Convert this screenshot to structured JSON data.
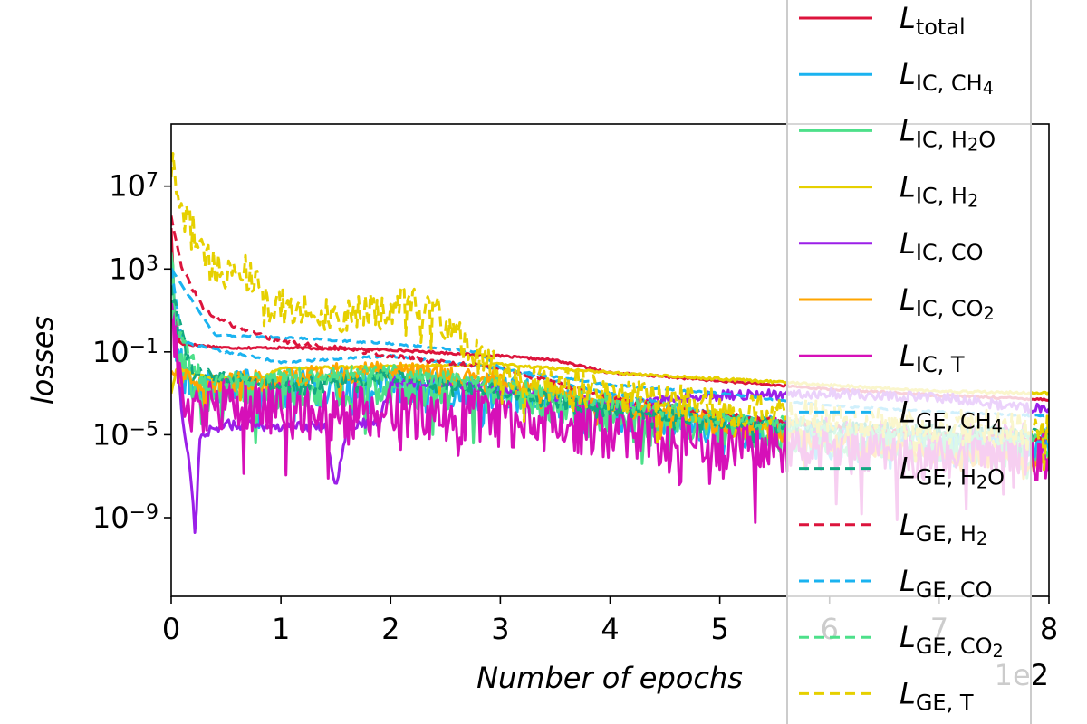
{
  "chart_data": {
    "type": "line",
    "xlabel": "Number of epochs",
    "ylabel": "losses",
    "x_multiplier": "1e2",
    "xlim": [
      0,
      8
    ],
    "ylim_log10": [
      -12.8,
      10
    ],
    "log_y": true,
    "x_ticks": [
      "0",
      "1",
      "2",
      "3",
      "4",
      "5",
      "6",
      "7",
      "8"
    ],
    "y_ticks": [
      {
        "base": "10",
        "exp": "7",
        "log10": 7
      },
      {
        "base": "10",
        "exp": "3",
        "log10": 3
      },
      {
        "base": "10",
        "exp": "−1",
        "log10": -1
      },
      {
        "base": "10",
        "exp": "−5",
        "log10": -5
      },
      {
        "base": "10",
        "exp": "−9",
        "log10": -9
      }
    ],
    "legend_position": "right, overlapping plot",
    "series": [
      {
        "name_main": "L",
        "name_sub": "total",
        "sub_html": "total",
        "color": "#dc143c",
        "dash": false,
        "noise": 0.05,
        "points": [
          [
            0,
            5
          ],
          [
            0.03,
            1
          ],
          [
            0.08,
            -0.6
          ],
          [
            0.5,
            -0.8
          ],
          [
            1.0,
            -0.8
          ],
          [
            2.0,
            -0.9
          ],
          [
            3.0,
            -1.2
          ],
          [
            3.5,
            -1.4
          ],
          [
            4.0,
            -2.0
          ],
          [
            5.0,
            -2.4
          ],
          [
            6.0,
            -2.8
          ],
          [
            7.0,
            -3.1
          ],
          [
            8.0,
            -3.3
          ]
        ]
      },
      {
        "name_main": "L",
        "name_sub": "IC, CH4",
        "sub_html": "IC, CH<tspan baseline-shift='-20%' font-size='0.8em'>4</tspan>",
        "color": "#1ab3f0",
        "dash": false,
        "noise": 0.9,
        "points": [
          [
            0,
            4
          ],
          [
            0.05,
            -1
          ],
          [
            0.15,
            -2.8
          ],
          [
            0.5,
            -2.5
          ],
          [
            1.0,
            -2.8
          ],
          [
            2.0,
            -2.6
          ],
          [
            3.0,
            -3.0
          ],
          [
            4.0,
            -3.8
          ],
          [
            5.0,
            -4.6
          ],
          [
            6.0,
            -5.4
          ],
          [
            7.0,
            -5.7
          ],
          [
            8.0,
            -5.3
          ]
        ]
      },
      {
        "name_main": "L",
        "name_sub": "IC, H2O",
        "sub_html": "IC, H<tspan baseline-shift='-20%' font-size='0.8em'>2</tspan>O",
        "color": "#4de08a",
        "dash": false,
        "noise": 0.9,
        "points": [
          [
            0,
            4
          ],
          [
            0.05,
            -1
          ],
          [
            0.2,
            -3
          ],
          [
            0.6,
            -2.8
          ],
          [
            1.0,
            -3.0
          ],
          [
            2.0,
            -2.8
          ],
          [
            3.0,
            -3.2
          ],
          [
            4.0,
            -4.0
          ],
          [
            5.0,
            -4.7
          ],
          [
            6.0,
            -5.2
          ],
          [
            7.0,
            -5.6
          ],
          [
            8.0,
            -5.8
          ]
        ]
      },
      {
        "name_main": "L",
        "name_sub": "IC, H2",
        "sub_html": "IC, H<tspan baseline-shift='-20%' font-size='0.8em'>2</tspan>",
        "color": "#e6d000",
        "dash": false,
        "noise": 0.06,
        "points": [
          [
            0,
            -3
          ],
          [
            0.05,
            -1.8
          ],
          [
            0.3,
            -2.2
          ],
          [
            0.8,
            -2.3
          ],
          [
            1.0,
            -1.8
          ],
          [
            2.0,
            -1.7
          ],
          [
            3.0,
            -1.6
          ],
          [
            4.0,
            -2.0
          ],
          [
            5.0,
            -2.3
          ],
          [
            6.0,
            -2.6
          ],
          [
            7.0,
            -2.9
          ],
          [
            8.0,
            -3.0
          ]
        ]
      },
      {
        "name_main": "L",
        "name_sub": "IC, CO",
        "sub_html": "IC, CO",
        "color": "#9b1fe8",
        "dash": false,
        "noise": 0.25,
        "points": [
          [
            0,
            1.5
          ],
          [
            0.1,
            -4
          ],
          [
            0.18,
            -7
          ],
          [
            0.22,
            -10
          ],
          [
            0.26,
            -5
          ],
          [
            0.5,
            -4.5
          ],
          [
            1.0,
            -4.6
          ],
          [
            1.4,
            -4.6
          ],
          [
            1.5,
            -7.5
          ],
          [
            1.6,
            -4.6
          ],
          [
            1.9,
            -4.3
          ],
          [
            2.0,
            -2.5
          ],
          [
            2.4,
            -2.4
          ],
          [
            3.0,
            -2.7
          ],
          [
            4.0,
            -3.6
          ],
          [
            5.0,
            -3.1
          ],
          [
            6.0,
            -3.0
          ],
          [
            7.0,
            -3.2
          ],
          [
            8.0,
            -3.8
          ]
        ]
      },
      {
        "name_main": "L",
        "name_sub": "IC, CO2",
        "sub_html": "IC, CO<tspan baseline-shift='-20%' font-size='0.8em'>2</tspan>",
        "color": "#ffa500",
        "dash": false,
        "noise": 0.5,
        "points": [
          [
            0,
            -2
          ],
          [
            0.3,
            -2.6
          ],
          [
            1.0,
            -2.3
          ],
          [
            2.0,
            -1.8
          ],
          [
            3.0,
            -2.4
          ],
          [
            4.0,
            -3.5
          ],
          [
            5.0,
            -4.5
          ],
          [
            6.0,
            -5.3
          ],
          [
            7.0,
            -5.9
          ],
          [
            8.0,
            -6.3
          ]
        ]
      },
      {
        "name_main": "L",
        "name_sub": "IC, T",
        "sub_html": "IC, T",
        "color": "#d610b8",
        "dash": false,
        "noise": 1.4,
        "points": [
          [
            0,
            1
          ],
          [
            0.1,
            -3.5
          ],
          [
            0.5,
            -3.7
          ],
          [
            1.0,
            -3.8
          ],
          [
            2.0,
            -3.9
          ],
          [
            3.0,
            -4.2
          ],
          [
            4.0,
            -4.8
          ],
          [
            5.0,
            -5.4
          ],
          [
            6.0,
            -5.6
          ],
          [
            7.0,
            -5.7
          ],
          [
            8.0,
            -5.8
          ]
        ]
      },
      {
        "name_main": "L",
        "name_sub": "GE, CH4",
        "sub_html": "GE, CH<tspan baseline-shift='-20%' font-size='0.8em'>4</tspan>",
        "color": "#1ab3f0",
        "dash": true,
        "noise": 0.05,
        "points": [
          [
            0,
            3
          ],
          [
            0.1,
            -0.5
          ],
          [
            0.5,
            -1.0
          ],
          [
            1.0,
            -1.5
          ],
          [
            2.0,
            -1.2
          ],
          [
            3.0,
            -1.8
          ],
          [
            4.0,
            -3.0
          ],
          [
            5.0,
            -4.0
          ],
          [
            6.0,
            -4.6
          ],
          [
            7.0,
            -5.0
          ],
          [
            8.0,
            -5.4
          ]
        ]
      },
      {
        "name_main": "L",
        "name_sub": "GE, H2O",
        "sub_html": "GE, H<tspan baseline-shift='-20%' font-size='0.8em'>2</tspan>O",
        "color": "#12a882",
        "dash": true,
        "noise": 0.35,
        "points": [
          [
            0,
            2
          ],
          [
            0.2,
            -2.0
          ],
          [
            1.0,
            -2.6
          ],
          [
            2.0,
            -2.2
          ],
          [
            3.0,
            -2.9
          ],
          [
            4.0,
            -3.8
          ],
          [
            5.0,
            -4.3
          ],
          [
            6.0,
            -4.6
          ],
          [
            7.0,
            -4.8
          ],
          [
            8.0,
            -4.9
          ]
        ]
      },
      {
        "name_main": "L",
        "name_sub": "GE, H2",
        "sub_html": "GE, H<tspan baseline-shift='-20%' font-size='0.8em'>2</tspan>",
        "color": "#dc143c",
        "dash": true,
        "noise": 0.1,
        "points": [
          [
            0,
            5.5
          ],
          [
            0.1,
            3
          ],
          [
            0.3,
            1
          ],
          [
            0.6,
            0.2
          ],
          [
            1.0,
            -0.5
          ],
          [
            1.5,
            -0.8
          ],
          [
            2.0,
            -1.2
          ],
          [
            3.0,
            -1.8
          ],
          [
            4.0,
            -3.2
          ],
          [
            5.0,
            -4.0
          ],
          [
            6.0,
            -4.6
          ],
          [
            7.0,
            -5.0
          ],
          [
            8.0,
            -5.2
          ]
        ]
      },
      {
        "name_main": "L",
        "name_sub": "GE, CO",
        "sub_html": "GE, CO",
        "color": "#1ab3f0",
        "dash": true,
        "noise": 0.04,
        "points": [
          [
            0,
            3
          ],
          [
            0.4,
            -0.2
          ],
          [
            1.0,
            -0.3
          ],
          [
            2.0,
            -0.6
          ],
          [
            2.8,
            -1.0
          ],
          [
            3.0,
            -1.8
          ],
          [
            4.0,
            -2.6
          ],
          [
            5.0,
            -3.0
          ],
          [
            6.0,
            -3.6
          ],
          [
            7.0,
            -3.9
          ],
          [
            8.0,
            -4.1
          ]
        ]
      },
      {
        "name_main": "L",
        "name_sub": "GE, CO2",
        "sub_html": "GE, CO<tspan baseline-shift='-20%' font-size='0.8em'>2</tspan>",
        "color": "#4de08a",
        "dash": true,
        "noise": 0.4,
        "points": [
          [
            0,
            1
          ],
          [
            0.3,
            -2.6
          ],
          [
            1.0,
            -2.2
          ],
          [
            2.0,
            -2.0
          ],
          [
            3.0,
            -2.6
          ],
          [
            4.0,
            -3.4
          ],
          [
            5.0,
            -4.2
          ],
          [
            6.0,
            -4.7
          ],
          [
            7.0,
            -5.0
          ],
          [
            8.0,
            -5.2
          ]
        ]
      },
      {
        "name_main": "L",
        "name_sub": "GE, T",
        "sub_html": "GE, T",
        "color": "#e6d000",
        "dash": true,
        "noise": 0.9,
        "points": [
          [
            0,
            8.2
          ],
          [
            0.05,
            7
          ],
          [
            0.15,
            5.5
          ],
          [
            0.3,
            3.5
          ],
          [
            0.5,
            2.6
          ],
          [
            0.7,
            2.8
          ],
          [
            0.9,
            1.2
          ],
          [
            1.2,
            1.2
          ],
          [
            1.5,
            0.8
          ],
          [
            2.0,
            1.0
          ],
          [
            2.2,
            1.6
          ],
          [
            2.5,
            0.5
          ],
          [
            2.7,
            -1.0
          ],
          [
            3.0,
            -2.0
          ],
          [
            4.0,
            -3.0
          ],
          [
            5.0,
            -3.6
          ],
          [
            6.0,
            -4.2
          ],
          [
            7.0,
            -4.6
          ],
          [
            8.0,
            -4.8
          ]
        ]
      }
    ]
  }
}
